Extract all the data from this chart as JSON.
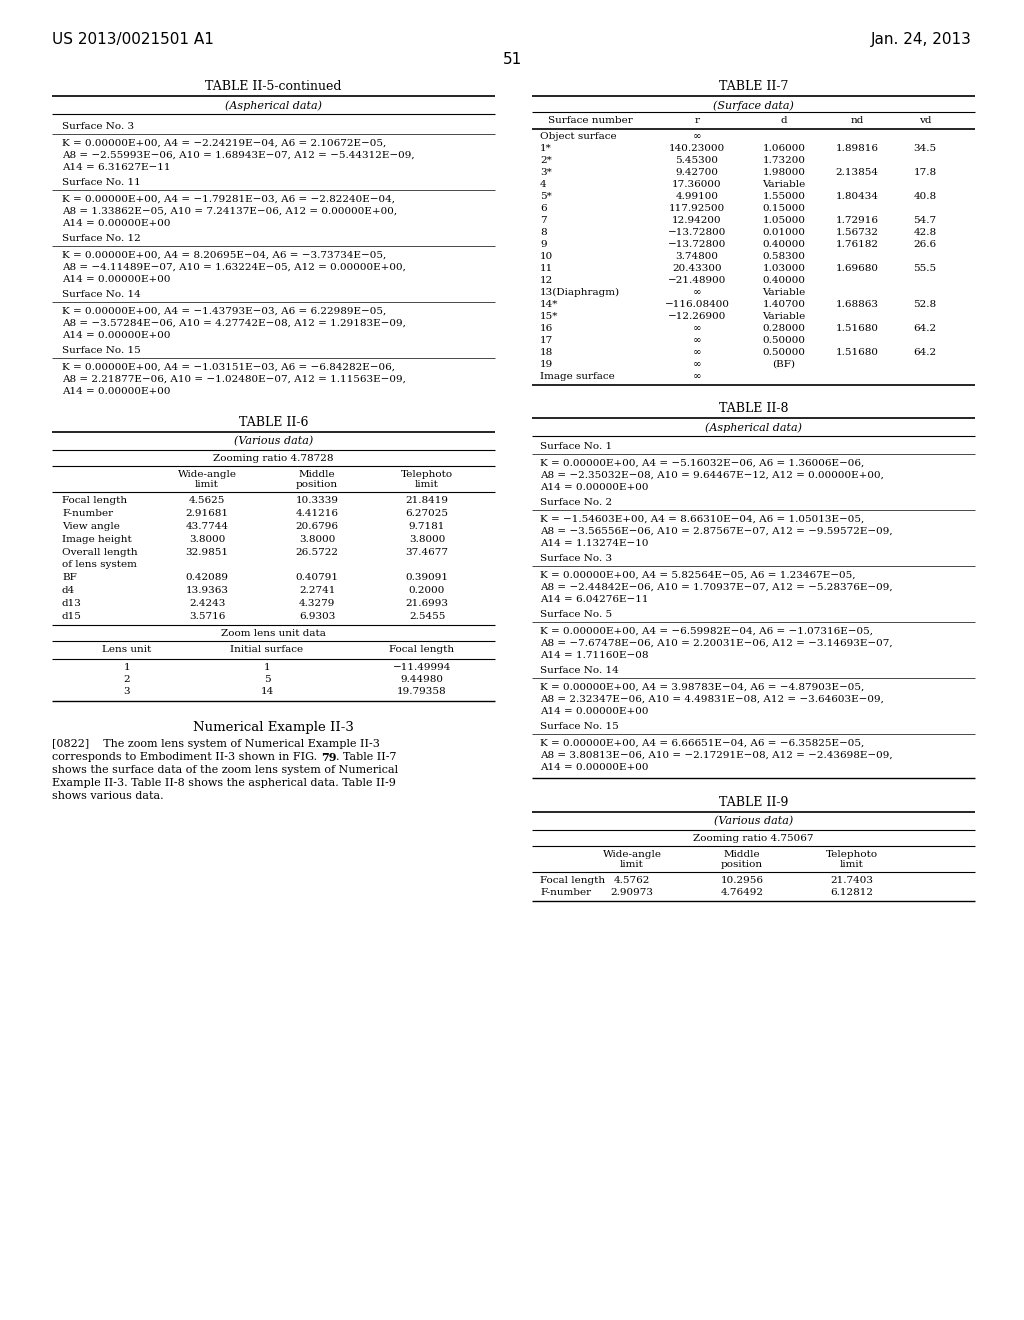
{
  "page_header_left": "US 2013/0021501 A1",
  "page_header_right": "Jan. 24, 2013",
  "page_number": "51",
  "table5_title": "TABLE II-5-continued",
  "table5_subtitle": "(Aspherical data)",
  "table5_content": [
    {
      "label": "Surface No. 3",
      "data": "K = 0.00000E+00, A4 = −2.24219E−04, A6 = 2.10672E−05,\nA8 = −2.55993E−06, A10 = 1.68943E−07, A12 = −5.44312E−09,\nA14 = 6.31627E−11"
    },
    {
      "label": "Surface No. 11",
      "data": "K = 0.00000E+00, A4 = −1.79281E−03, A6 = −2.82240E−04,\nA8 = 1.33862E−05, A10 = 7.24137E−06, A12 = 0.00000E+00,\nA14 = 0.00000E+00"
    },
    {
      "label": "Surface No. 12",
      "data": "K = 0.00000E+00, A4 = 8.20695E−04, A6 = −3.73734E−05,\nA8 = −4.11489E−07, A10 = 1.63224E−05, A12 = 0.00000E+00,\nA14 = 0.00000E+00"
    },
    {
      "label": "Surface No. 14",
      "data": "K = 0.00000E+00, A4 = −1.43793E−03, A6 = 6.22989E−05,\nA8 = −3.57284E−06, A10 = 4.27742E−08, A12 = 1.29183E−09,\nA14 = 0.00000E+00"
    },
    {
      "label": "Surface No. 15",
      "data": "K = 0.00000E+00, A4 = −1.03151E−03, A6 = −6.84282E−06,\nA8 = 2.21877E−06, A10 = −1.02480E−07, A12 = 1.11563E−09,\nA14 = 0.00000E+00"
    }
  ],
  "table6_title": "TABLE II-6",
  "table6_subtitle": "(Various data)",
  "table6_zoom_ratio": "Zooming ratio 4.78728",
  "table6_col_headers": [
    "",
    "Wide-angle\nlimit",
    "Middle\nposition",
    "Telephoto\nlimit"
  ],
  "table6_rows": [
    [
      "Focal length",
      "4.5625",
      "10.3339",
      "21.8419"
    ],
    [
      "F-number",
      "2.91681",
      "4.41216",
      "6.27025"
    ],
    [
      "View angle",
      "43.7744",
      "20.6796",
      "9.7181"
    ],
    [
      "Image height",
      "3.8000",
      "3.8000",
      "3.8000"
    ],
    [
      "Overall length\nof lens system",
      "32.9851",
      "26.5722",
      "37.4677"
    ],
    [
      "BF",
      "0.42089",
      "0.40791",
      "0.39091"
    ],
    [
      "d4",
      "13.9363",
      "2.2741",
      "0.2000"
    ],
    [
      "d13",
      "2.4243",
      "4.3279",
      "21.6993"
    ],
    [
      "d15",
      "3.5716",
      "6.9303",
      "2.5455"
    ]
  ],
  "table6_zoom_lens_label": "Zoom lens unit data",
  "table6_lens_headers": [
    "Lens unit",
    "Initial surface",
    "Focal length"
  ],
  "table6_lens_rows": [
    [
      "1",
      "1",
      "−11.49994"
    ],
    [
      "2",
      "5",
      "9.44980"
    ],
    [
      "3",
      "14",
      "19.79358"
    ]
  ],
  "table7_title": "TABLE II-7",
  "table7_subtitle": "(Surface data)",
  "table7_col_headers": [
    "Surface number",
    "r",
    "d",
    "nd",
    "vd"
  ],
  "table7_rows": [
    [
      "Object surface",
      "∞",
      "",
      "",
      ""
    ],
    [
      "1*",
      "140.23000",
      "1.06000",
      "1.89816",
      "34.5"
    ],
    [
      "2*",
      "5.45300",
      "1.73200",
      "",
      ""
    ],
    [
      "3*",
      "9.42700",
      "1.98000",
      "2.13854",
      "17.8"
    ],
    [
      "4",
      "17.36000",
      "Variable",
      "",
      ""
    ],
    [
      "5*",
      "4.99100",
      "1.55000",
      "1.80434",
      "40.8"
    ],
    [
      "6",
      "117.92500",
      "0.15000",
      "",
      ""
    ],
    [
      "7",
      "12.94200",
      "1.05000",
      "1.72916",
      "54.7"
    ],
    [
      "8",
      "−13.72800",
      "0.01000",
      "1.56732",
      "42.8"
    ],
    [
      "9",
      "−13.72800",
      "0.40000",
      "1.76182",
      "26.6"
    ],
    [
      "10",
      "3.74800",
      "0.58300",
      "",
      ""
    ],
    [
      "11",
      "20.43300",
      "1.03000",
      "1.69680",
      "55.5"
    ],
    [
      "12",
      "−21.48900",
      "0.40000",
      "",
      ""
    ],
    [
      "13(Diaphragm)",
      "∞",
      "Variable",
      "",
      ""
    ],
    [
      "14*",
      "−116.08400",
      "1.40700",
      "1.68863",
      "52.8"
    ],
    [
      "15*",
      "−12.26900",
      "Variable",
      "",
      ""
    ],
    [
      "16",
      "∞",
      "0.28000",
      "1.51680",
      "64.2"
    ],
    [
      "17",
      "∞",
      "0.50000",
      "",
      ""
    ],
    [
      "18",
      "∞",
      "0.50000",
      "1.51680",
      "64.2"
    ],
    [
      "19",
      "∞",
      "(BF)",
      "",
      ""
    ],
    [
      "Image surface",
      "∞",
      "",
      "",
      ""
    ]
  ],
  "table8_title": "TABLE II-8",
  "table8_subtitle": "(Aspherical data)",
  "table8_content": [
    {
      "label": "Surface No. 1",
      "data": "K = 0.00000E+00, A4 = −5.16032E−06, A6 = 1.36006E−06,\nA8 = −2.35032E−08, A10 = 9.64467E−12, A12 = 0.00000E+00,\nA14 = 0.00000E+00"
    },
    {
      "label": "Surface No. 2",
      "data": "K = −1.54603E+00, A4 = 8.66310E−04, A6 = 1.05013E−05,\nA8 = −3.56556E−06, A10 = 2.87567E−07, A12 = −9.59572E−09,\nA14 = 1.13274E−10"
    },
    {
      "label": "Surface No. 3",
      "data": "K = 0.00000E+00, A4 = 5.82564E−05, A6 = 1.23467E−05,\nA8 = −2.44842E−06, A10 = 1.70937E−07, A12 = −5.28376E−09,\nA14 = 6.04276E−11"
    },
    {
      "label": "Surface No. 5",
      "data": "K = 0.00000E+00, A4 = −6.59982E−04, A6 = −1.07316E−05,\nA8 = −7.67478E−06, A10 = 2.20031E−06, A12 = −3.14693E−07,\nA14 = 1.71160E−08"
    },
    {
      "label": "Surface No. 14",
      "data": "K = 0.00000E+00, A4 = 3.98783E−04, A6 = −4.87903E−05,\nA8 = 2.32347E−06, A10 = 4.49831E−08, A12 = −3.64603E−09,\nA14 = 0.00000E+00"
    },
    {
      "label": "Surface No. 15",
      "data": "K = 0.00000E+00, A4 = 6.66651E−04, A6 = −6.35825E−05,\nA8 = 3.80813E−06, A10 = −2.17291E−08, A12 = −2.43698E−09,\nA14 = 0.00000E+00"
    }
  ],
  "table9_title": "TABLE II-9",
  "table9_subtitle": "(Various data)",
  "table9_zoom_ratio": "Zooming ratio 4.75067",
  "table9_col_headers": [
    "",
    "Wide-angle\nlimit",
    "Middle\nposition",
    "Telephoto\nlimit"
  ],
  "table9_rows": [
    [
      "Focal length",
      "4.5762",
      "10.2956",
      "21.7403"
    ],
    [
      "F-number",
      "2.90973",
      "4.76492",
      "6.12812"
    ]
  ],
  "numerical_example_title": "Numerical Example II-3",
  "numerical_example_lines": [
    {
      "text": "[0822]    The zoom lens system of Numerical Example II-3",
      "bold_word": ""
    },
    {
      "text": "corresponds to Embodiment II-3 shown in FIG. 79. Table II-7",
      "bold_word": "79"
    },
    {
      "text": "shows the surface data of the zoom lens system of Numerical",
      "bold_word": ""
    },
    {
      "text": "Example II-3. Table II-8 shows the aspherical data. Table II-9",
      "bold_word": ""
    },
    {
      "text": "shows various data.",
      "bold_word": ""
    }
  ]
}
